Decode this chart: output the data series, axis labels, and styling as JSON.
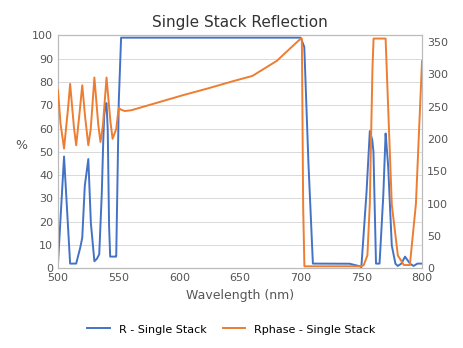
{
  "title": "Single Stack Reflection",
  "xlabel": "Wavelength (nm)",
  "ylabel_left": "%",
  "ylabel_right": "",
  "xlim": [
    500,
    800
  ],
  "ylim_left": [
    0,
    100
  ],
  "ylim_right": [
    0,
    360
  ],
  "yticks_left": [
    0,
    10,
    20,
    30,
    40,
    50,
    60,
    70,
    80,
    90,
    100
  ],
  "yticks_right": [
    0,
    50,
    100,
    150,
    200,
    250,
    300,
    350
  ],
  "xticks": [
    500,
    550,
    600,
    650,
    700,
    750,
    800
  ],
  "blue_color": "#4472C4",
  "orange_color": "#ED7D31",
  "legend_blue": "R - Single Stack",
  "legend_orange": "Rphase - Single Stack",
  "background_color": "#ffffff",
  "grid_color": "#d3d3d3",
  "R_wl": [
    500,
    505,
    510,
    515,
    516,
    518,
    520,
    522,
    525,
    527,
    530,
    532,
    534,
    536,
    537,
    538,
    539,
    540,
    541,
    542,
    543,
    544,
    546,
    548,
    550,
    552,
    555,
    600,
    650,
    700,
    703,
    706,
    710,
    720,
    730,
    740,
    748,
    750,
    754,
    757,
    759,
    760,
    762,
    765,
    768,
    770,
    772,
    775,
    778,
    780,
    783,
    786,
    790,
    793,
    796,
    800
  ],
  "R_vals": [
    2,
    48,
    2,
    2,
    4,
    8,
    13,
    35,
    47,
    20,
    3,
    4,
    6,
    30,
    50,
    65,
    70,
    71,
    60,
    20,
    5,
    5,
    5,
    5,
    70,
    99,
    99,
    99,
    99,
    99,
    95,
    50,
    2,
    2,
    2,
    2,
    1,
    0.5,
    30,
    59,
    55,
    50,
    2,
    2,
    30,
    58,
    45,
    10,
    2,
    1,
    2,
    5,
    2,
    1,
    2,
    2
  ],
  "Ph_wl": [
    500,
    502,
    505,
    508,
    510,
    513,
    515,
    517,
    520,
    522,
    525,
    527,
    530,
    533,
    535,
    537,
    540,
    543,
    545,
    548,
    550,
    552,
    555,
    560,
    580,
    600,
    620,
    640,
    660,
    680,
    700,
    701,
    702,
    703,
    710,
    720,
    730,
    740,
    748,
    750,
    752,
    755,
    757,
    758,
    759,
    760,
    762,
    765,
    770,
    775,
    780,
    785,
    790,
    795,
    800
  ],
  "Ph_vals": [
    275,
    225,
    185,
    240,
    285,
    220,
    190,
    225,
    283,
    240,
    190,
    215,
    295,
    225,
    195,
    220,
    295,
    230,
    200,
    215,
    248,
    245,
    243,
    244,
    255,
    266,
    276,
    287,
    297,
    320,
    355,
    355,
    100,
    3,
    3,
    3,
    3,
    3,
    3,
    3,
    5,
    20,
    100,
    200,
    300,
    355,
    355,
    355,
    355,
    100,
    20,
    5,
    5,
    100,
    320
  ]
}
